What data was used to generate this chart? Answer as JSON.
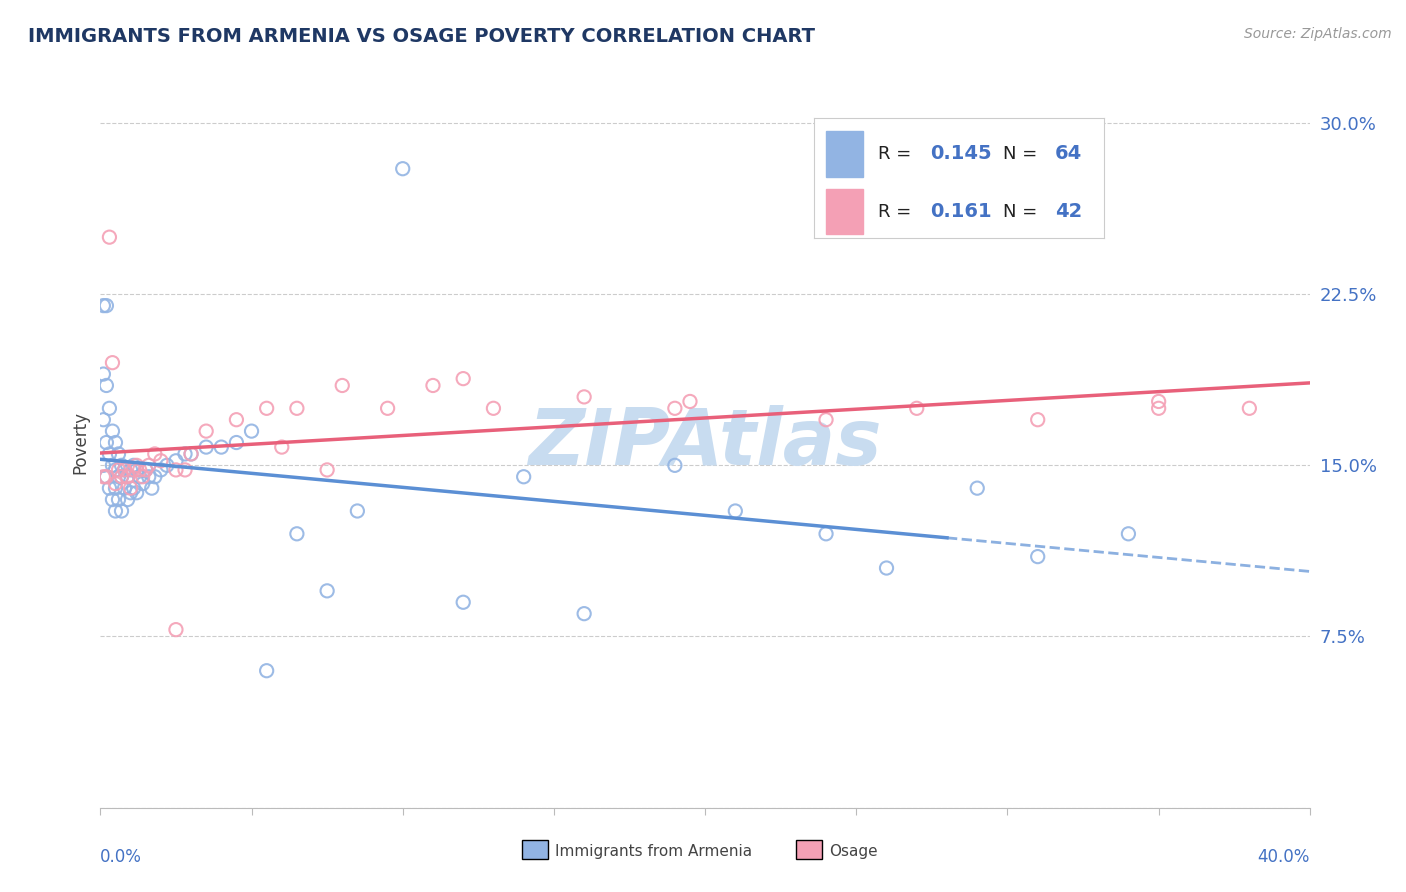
{
  "title": "IMMIGRANTS FROM ARMENIA VS OSAGE POVERTY CORRELATION CHART",
  "source_text": "Source: ZipAtlas.com",
  "watermark": "ZIPAtlas",
  "ylabel": "Poverty",
  "color_blue": "#92B4E3",
  "color_pink": "#F4A0B5",
  "color_blue_line": "#5B8FD4",
  "color_pink_line": "#E8607A",
  "color_r_n": "#4472C4",
  "background_color": "#FFFFFF",
  "grid_color": "#CCCCCC",
  "title_color": "#1F3864",
  "watermark_color": "#C8DCF0",
  "xlim": [
    0.0,
    0.4
  ],
  "ylim": [
    0.0,
    0.32
  ],
  "ytick_vals": [
    0.0,
    0.075,
    0.15,
    0.225,
    0.3
  ],
  "ytick_labels": [
    "",
    "7.5%",
    "15.0%",
    "22.5%",
    "30.0%"
  ],
  "legend_r1": "0.145",
  "legend_n1": "64",
  "legend_r2": "0.161",
  "legend_n2": "42",
  "blue_x": [
    0.001,
    0.001,
    0.001,
    0.001,
    0.002,
    0.002,
    0.002,
    0.002,
    0.003,
    0.003,
    0.003,
    0.004,
    0.004,
    0.004,
    0.005,
    0.005,
    0.005,
    0.005,
    0.006,
    0.006,
    0.006,
    0.007,
    0.007,
    0.007,
    0.008,
    0.008,
    0.009,
    0.009,
    0.01,
    0.01,
    0.011,
    0.011,
    0.012,
    0.012,
    0.013,
    0.014,
    0.015,
    0.016,
    0.017,
    0.018,
    0.02,
    0.022,
    0.025,
    0.028,
    0.03,
    0.035,
    0.04,
    0.045,
    0.05,
    0.055,
    0.065,
    0.075,
    0.085,
    0.1,
    0.12,
    0.14,
    0.16,
    0.19,
    0.21,
    0.24,
    0.26,
    0.29,
    0.31,
    0.34
  ],
  "blue_y": [
    0.22,
    0.19,
    0.17,
    0.15,
    0.22,
    0.185,
    0.16,
    0.145,
    0.175,
    0.155,
    0.14,
    0.165,
    0.15,
    0.135,
    0.16,
    0.148,
    0.14,
    0.13,
    0.155,
    0.145,
    0.135,
    0.15,
    0.145,
    0.13,
    0.148,
    0.14,
    0.145,
    0.135,
    0.148,
    0.138,
    0.15,
    0.14,
    0.148,
    0.138,
    0.145,
    0.142,
    0.148,
    0.145,
    0.14,
    0.145,
    0.148,
    0.15,
    0.152,
    0.155,
    0.155,
    0.158,
    0.158,
    0.16,
    0.165,
    0.06,
    0.12,
    0.095,
    0.13,
    0.28,
    0.09,
    0.145,
    0.085,
    0.15,
    0.13,
    0.12,
    0.105,
    0.14,
    0.11,
    0.12
  ],
  "pink_x": [
    0.001,
    0.002,
    0.003,
    0.004,
    0.005,
    0.006,
    0.007,
    0.008,
    0.009,
    0.01,
    0.011,
    0.012,
    0.013,
    0.014,
    0.015,
    0.016,
    0.018,
    0.02,
    0.025,
    0.028,
    0.03,
    0.035,
    0.045,
    0.055,
    0.065,
    0.08,
    0.095,
    0.11,
    0.13,
    0.16,
    0.19,
    0.24,
    0.27,
    0.31,
    0.35,
    0.38,
    0.025,
    0.06,
    0.075,
    0.12,
    0.195,
    0.35
  ],
  "pink_y": [
    0.145,
    0.145,
    0.25,
    0.195,
    0.142,
    0.148,
    0.145,
    0.148,
    0.145,
    0.14,
    0.148,
    0.15,
    0.148,
    0.145,
    0.148,
    0.15,
    0.155,
    0.152,
    0.148,
    0.148,
    0.155,
    0.165,
    0.17,
    0.175,
    0.175,
    0.185,
    0.175,
    0.185,
    0.175,
    0.18,
    0.175,
    0.17,
    0.175,
    0.17,
    0.175,
    0.175,
    0.078,
    0.158,
    0.148,
    0.188,
    0.178,
    0.178
  ]
}
